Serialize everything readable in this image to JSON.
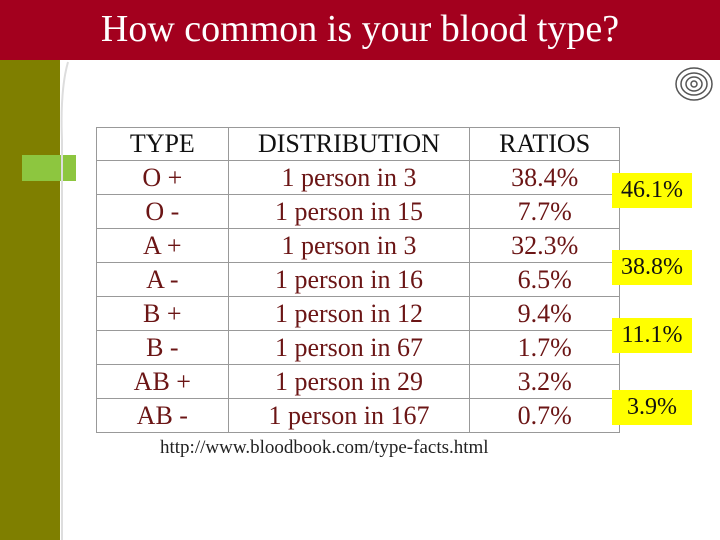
{
  "header": {
    "title": "How common is your blood type?"
  },
  "table": {
    "headers": [
      "TYPE",
      "DISTRIBUTION",
      "RATIOS"
    ],
    "rows": [
      [
        "O +",
        "1 person in 3",
        "38.4%"
      ],
      [
        "O -",
        "1 person in 15",
        "7.7%"
      ],
      [
        "A +",
        "1 person in 3",
        "32.3%"
      ],
      [
        "A -",
        "1 person in 16",
        "6.5%"
      ],
      [
        "B +",
        "1 person in 12",
        "9.4%"
      ],
      [
        "B -",
        "1 person in 67",
        "1.7%"
      ],
      [
        "AB +",
        "1 person in 29",
        "3.2%"
      ],
      [
        "AB -",
        "1 person in 167",
        "0.7%"
      ]
    ]
  },
  "side_labels": [
    "46.1%",
    "38.8%",
    "11.1%",
    "3.9%"
  ],
  "source": "http://www.bloodbook.com/type-facts.html"
}
